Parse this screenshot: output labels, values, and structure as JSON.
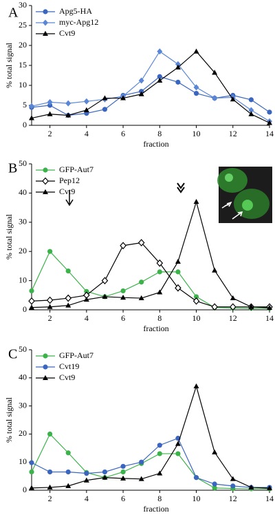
{
  "chart_data": [
    {
      "type": "line",
      "panel": "A",
      "xlabel": "fraction",
      "ylabel": "% total signal",
      "x": [
        1,
        2,
        3,
        4,
        5,
        6,
        7,
        8,
        9,
        10,
        11,
        12,
        13,
        14
      ],
      "xlim": [
        1,
        14
      ],
      "xticks": [
        2,
        4,
        6,
        8,
        10,
        12,
        14
      ],
      "ylim": [
        0,
        30
      ],
      "yticks": [
        0,
        5,
        10,
        15,
        20,
        25,
        30
      ],
      "series": [
        {
          "name": "Apg5-HA",
          "color": "#3a66c0",
          "marker": "circle",
          "values": [
            4.5,
            5.0,
            2.5,
            3.0,
            4.0,
            7.5,
            8.5,
            12.2,
            10.8,
            8.0,
            6.8,
            7.5,
            6.4,
            3.3
          ]
        },
        {
          "name": "myc-Apg12",
          "color": "#5a86d6",
          "marker": "diamond",
          "values": [
            4.8,
            5.8,
            5.5,
            6.0,
            6.5,
            7.3,
            11.2,
            18.5,
            15.3,
            9.5,
            6.8,
            7.0,
            3.8,
            1.0
          ]
        },
        {
          "name": "Cvt9",
          "color": "#000000",
          "marker": "triangle",
          "values": [
            1.8,
            2.8,
            2.5,
            3.8,
            6.8,
            6.8,
            7.8,
            11.2,
            14.5,
            18.5,
            13.2,
            6.5,
            2.8,
            0.6
          ]
        }
      ]
    },
    {
      "type": "line",
      "panel": "B",
      "xlabel": "fraction",
      "ylabel": "% total signal",
      "x": [
        1,
        2,
        3,
        4,
        5,
        6,
        7,
        8,
        9,
        10,
        11,
        12,
        13,
        14
      ],
      "xlim": [
        1,
        14
      ],
      "xticks": [
        2,
        4,
        6,
        8,
        10,
        12,
        14
      ],
      "ylim": [
        0,
        50
      ],
      "yticks": [
        0,
        10,
        20,
        30,
        40,
        50
      ],
      "series": [
        {
          "name": "GFP-Aut7",
          "color": "#3cb34a",
          "marker": "circle",
          "values": [
            6.5,
            20.0,
            13.3,
            6.3,
            4.5,
            6.5,
            9.5,
            13.0,
            13.0,
            4.5,
            0.8,
            0.6,
            0.5,
            0.5
          ]
        },
        {
          "name": "Pep12",
          "color": "#000000",
          "marker": "diamond-open",
          "values": [
            3.0,
            3.3,
            4.0,
            5.0,
            10.0,
            22.0,
            23.0,
            16.0,
            7.5,
            3.0,
            1.0,
            1.0,
            1.0,
            1.0
          ]
        },
        {
          "name": "Cvt9",
          "color": "#000000",
          "marker": "triangle",
          "values": [
            0.8,
            1.0,
            1.5,
            3.5,
            4.5,
            4.2,
            4.0,
            6.0,
            16.5,
            37.0,
            13.5,
            4.0,
            1.0,
            0.7
          ]
        }
      ]
    },
    {
      "type": "line",
      "panel": "C",
      "xlabel": "fraction",
      "ylabel": "% total signal",
      "x": [
        1,
        2,
        3,
        4,
        5,
        6,
        7,
        8,
        9,
        10,
        11,
        12,
        13,
        14
      ],
      "xlim": [
        1,
        14
      ],
      "xticks": [
        2,
        4,
        6,
        8,
        10,
        12,
        14
      ],
      "ylim": [
        0,
        50
      ],
      "yticks": [
        0,
        10,
        20,
        30,
        40,
        50
      ],
      "series": [
        {
          "name": "GFP-Aut7",
          "color": "#3cb34a",
          "marker": "circle",
          "values": [
            6.5,
            20.0,
            13.3,
            6.3,
            4.5,
            6.5,
            9.5,
            13.0,
            13.0,
            4.5,
            0.8,
            0.6,
            0.5,
            0.5
          ]
        },
        {
          "name": "Cvt19",
          "color": "#3a66c0",
          "marker": "circle",
          "values": [
            9.8,
            6.5,
            6.5,
            6.0,
            6.5,
            8.5,
            10.0,
            16.0,
            18.5,
            4.5,
            2.2,
            1.5,
            1.0,
            1.0
          ]
        },
        {
          "name": "Cvt9",
          "color": "#000000",
          "marker": "triangle",
          "values": [
            0.8,
            1.0,
            1.5,
            3.5,
            4.5,
            4.2,
            4.0,
            6.0,
            16.5,
            37.0,
            13.5,
            4.0,
            1.0,
            0.7
          ]
        }
      ]
    }
  ]
}
